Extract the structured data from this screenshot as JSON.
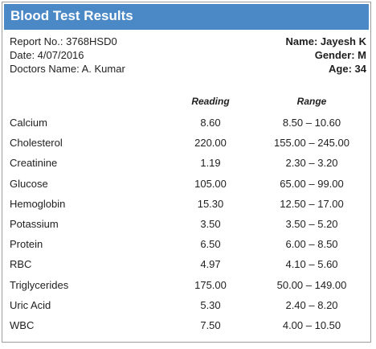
{
  "header": {
    "title": "Blood Test Results"
  },
  "patient": {
    "report_no": "Report No.: 3768HSD0",
    "date": "Date: 4/07/2016",
    "doctor": "Doctors Name: A. Kumar",
    "name": "Name: Jayesh K",
    "gender": "Gender: M",
    "age": "Age: 34"
  },
  "table": {
    "columns": {
      "reading": "Reading",
      "range": "Range"
    },
    "rows": [
      {
        "test": "Calcium",
        "reading": "8.60",
        "range": "8.50 – 10.60"
      },
      {
        "test": "Cholesterol",
        "reading": "220.00",
        "range": "155.00 – 245.00"
      },
      {
        "test": "Creatinine",
        "reading": "1.19",
        "range": "2.30 – 3.20"
      },
      {
        "test": "Glucose",
        "reading": "105.00",
        "range": "65.00 – 99.00"
      },
      {
        "test": "Hemoglobin",
        "reading": "15.30",
        "range": "12.50 – 17.00"
      },
      {
        "test": "Potassium",
        "reading": "3.50",
        "range": "3.50 – 5.20"
      },
      {
        "test": "Protein",
        "reading": "6.50",
        "range": "6.00 – 8.50"
      },
      {
        "test": "RBC",
        "reading": "4.97",
        "range": "4.10 – 5.60"
      },
      {
        "test": "Triglycerides",
        "reading": "175.00",
        "range": "50.00 – 149.00"
      },
      {
        "test": "Uric Acid",
        "reading": "5.30",
        "range": "2.40 – 8.20"
      },
      {
        "test": "WBC",
        "reading": "7.50",
        "range": "4.00 – 10.50"
      }
    ]
  }
}
